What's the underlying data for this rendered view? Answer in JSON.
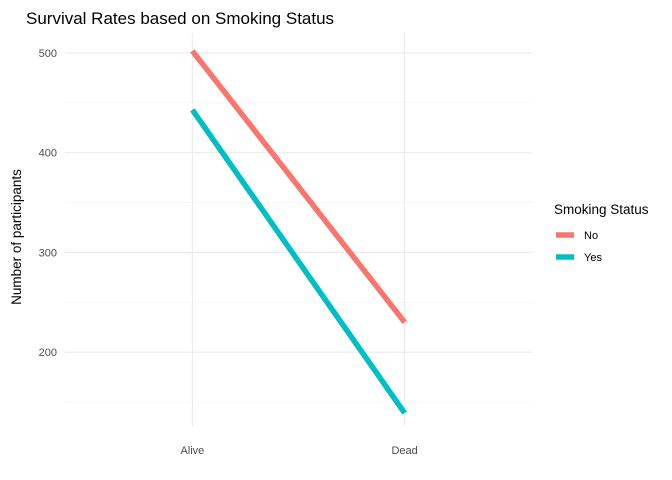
{
  "chart_data": {
    "type": "line",
    "title": "Survival Rates based on Smoking Status",
    "xlabel": "",
    "ylabel": "Number of participants",
    "categories": [
      "Alive",
      "Dead"
    ],
    "ylim": [
      125,
      520
    ],
    "yticks": [
      200,
      300,
      400,
      500
    ],
    "grid": true,
    "legend": {
      "title": "Smoking Status",
      "placement": "right"
    },
    "series": [
      {
        "name": "No",
        "values": [
          502,
          230
        ],
        "color": "#F8766D"
      },
      {
        "name": "Yes",
        "values": [
          443,
          139
        ],
        "color": "#00BFC4"
      }
    ]
  }
}
